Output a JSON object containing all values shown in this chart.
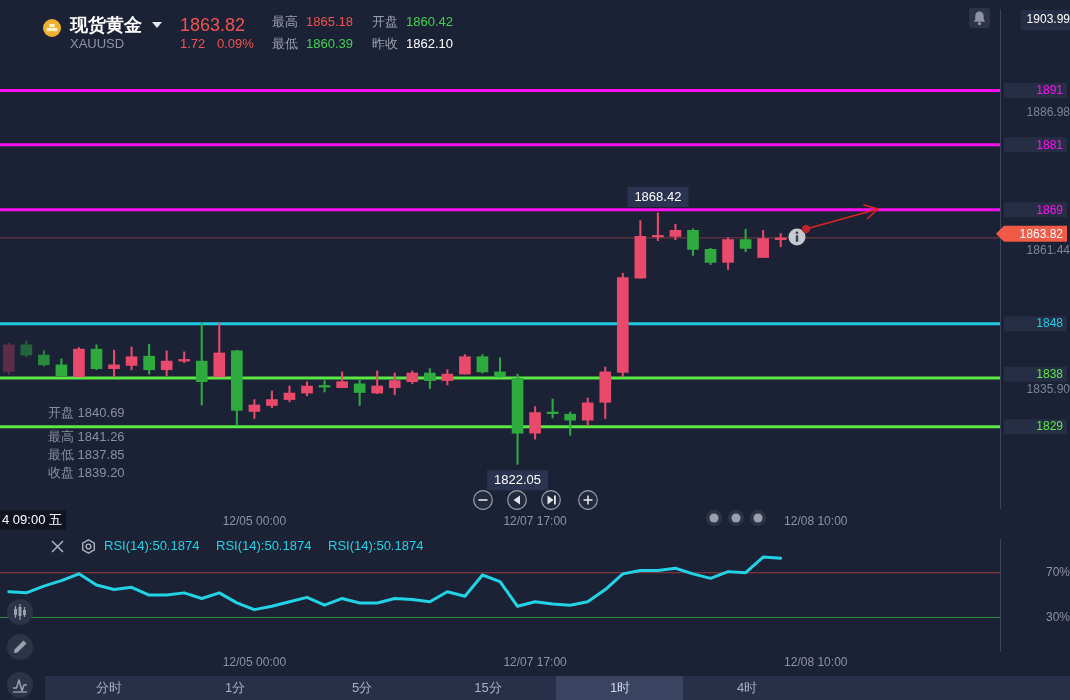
{
  "chart_data": [
    {
      "type": "candlestick",
      "title": "现货黄金",
      "subtitle": "XAUUSD",
      "categories": [
        null,
        null,
        null,
        null,
        null,
        null,
        null,
        null,
        null,
        null,
        null,
        null,
        null,
        null,
        "12/05 00:00",
        null,
        null,
        null,
        null,
        null,
        null,
        null,
        null,
        null,
        null,
        null,
        null,
        null,
        null,
        null,
        "12/07 17:00",
        null,
        null,
        null,
        null,
        null,
        null,
        null,
        null,
        null,
        null,
        null,
        null,
        null,
        null,
        null,
        "12/08 10:00",
        null,
        null,
        null,
        null,
        null,
        null,
        null,
        null,
        null,
        null
      ],
      "ohlc": [
        [
          1839.2,
          1844.4,
          1838.6,
          1844.1
        ],
        [
          1844.1,
          1844.8,
          1841.9,
          1842.2
        ],
        [
          1842.2,
          1843.0,
          1840.2,
          1840.4
        ],
        [
          1840.4,
          1841.5,
          1838.3,
          1838.4
        ],
        [
          1838.2,
          1843.6,
          1838.2,
          1843.3
        ],
        [
          1843.3,
          1844.1,
          1839.5,
          1839.7
        ],
        [
          1839.7,
          1843.1,
          1838.2,
          1840.4
        ],
        [
          1840.3,
          1843.7,
          1839.5,
          1841.9
        ],
        [
          1842.0,
          1844.2,
          1838.7,
          1839.5
        ],
        [
          1839.5,
          1843.0,
          1838.4,
          1841.1
        ],
        [
          1841.1,
          1842.8,
          1840.8,
          1841.4
        ],
        [
          1841.1,
          1848.1,
          1833.0,
          1837.3
        ],
        [
          1838.2,
          1848.1,
          1838.2,
          1842.6
        ],
        [
          1843.0,
          1843.1,
          1829.2,
          1832.0
        ],
        [
          1831.8,
          1834.0,
          1830.5,
          1833.0
        ],
        [
          1832.9,
          1835.6,
          1832.5,
          1834.0
        ],
        [
          1834.0,
          1836.5,
          1833.6,
          1835.2
        ],
        [
          1835.2,
          1837.3,
          1834.7,
          1836.5
        ],
        [
          1836.6,
          1837.5,
          1835.4,
          1836.3
        ],
        [
          1836.2,
          1839.1,
          1836.2,
          1837.3
        ],
        [
          1836.9,
          1837.6,
          1832.9,
          1835.3
        ],
        [
          1835.2,
          1839.3,
          1835.1,
          1836.5
        ],
        [
          1836.2,
          1838.9,
          1834.9,
          1837.5
        ],
        [
          1837.3,
          1839.3,
          1836.9,
          1838.9
        ],
        [
          1838.9,
          1839.7,
          1836.0,
          1837.5
        ],
        [
          1837.5,
          1839.5,
          1836.7,
          1838.7
        ],
        [
          1838.7,
          1842.3,
          1838.7,
          1841.9
        ],
        [
          1841.9,
          1842.3,
          1838.9,
          1839.1
        ],
        [
          1839.1,
          1841.7,
          1838.1,
          1838.2
        ],
        [
          1837.9,
          1838.7,
          1822.05,
          1827.8
        ],
        [
          1827.8,
          1832.7,
          1826.7,
          1831.6
        ],
        [
          1831.7,
          1834.1,
          1830.6,
          1831.4
        ],
        [
          1831.3,
          1831.7,
          1827.4,
          1830.2
        ],
        [
          1830.2,
          1834.3,
          1829.2,
          1833.4
        ],
        [
          1833.5,
          1840.0,
          1830.5,
          1839.1
        ],
        [
          1839.0,
          1857.3,
          1838.2,
          1856.5
        ],
        [
          1856.4,
          1867.0,
          1856.4,
          1864.1
        ],
        [
          1864.0,
          1868.42,
          1863.3,
          1864.3
        ],
        [
          1864.1,
          1866.3,
          1863.5,
          1865.2
        ],
        [
          1865.2,
          1865.5,
          1860.6,
          1861.7
        ],
        [
          1861.7,
          1861.9,
          1858.9,
          1859.3
        ],
        [
          1859.3,
          1863.9,
          1858.0,
          1863.5
        ],
        [
          1863.5,
          1865.4,
          1861.3,
          1861.9
        ],
        [
          1860.2,
          1865.2,
          1860.2,
          1863.7
        ],
        [
          1863.5,
          1864.6,
          1862.2,
          1863.82
        ],
        null,
        null,
        null,
        null,
        null,
        null,
        null,
        null,
        null,
        null,
        null,
        null
      ],
      "colors": [
        "#5b2d47",
        "#24643a",
        "#2a8a3c",
        "#2eaa3f",
        "#e9496b",
        "#2eaa3f",
        "#e9496b",
        "#e9496b",
        "#2eaa3f",
        "#e9496b",
        "#e9496b",
        "#2eaa3f",
        "#e9496b",
        "#2eaa3f",
        "#e9496b",
        "#e9496b",
        "#e9496b",
        "#e9496b",
        "#2eaa3f",
        "#e9496b",
        "#2eaa3f",
        "#e9496b",
        "#e9496b",
        "#e9496b",
        "#2eaa3f",
        "#e9496b",
        "#e9496b",
        "#2eaa3f",
        "#2eaa3f",
        "#2eaa3f",
        "#e9496b",
        "#2eaa3f",
        "#2eaa3f",
        "#e9496b",
        "#e9496b",
        "#e9496b",
        "#e9496b",
        "#e9496b",
        "#e9496b",
        "#2eaa3f",
        "#2eaa3f",
        "#e9496b",
        "#2eaa3f",
        "#e9496b",
        "#e9496b",
        null,
        null,
        null,
        null,
        null,
        null,
        null,
        null,
        null,
        null,
        null,
        null
      ],
      "ylim": [
        1814,
        1906
      ],
      "yticks": [
        {
          "value": 1835.9,
          "label": "1835.90"
        },
        {
          "value": 1861.44,
          "label": "1861.44"
        },
        {
          "value": 1886.98,
          "label": "1886.98"
        },
        {
          "value": 1903.99,
          "label": "1903.99"
        }
      ],
      "ref_lines": [
        {
          "axis": "y",
          "value": 1891,
          "label": "1891",
          "color": "#ff10f0"
        },
        {
          "axis": "y",
          "value": 1881,
          "label": "1881",
          "color": "#ff10f0"
        },
        {
          "axis": "y",
          "value": 1869,
          "label": "1869",
          "color": "#ff10f0"
        },
        {
          "axis": "y",
          "value": 1848,
          "label": "1848",
          "color": "#1fc9e3"
        },
        {
          "axis": "y",
          "value": 1838,
          "label": "1838",
          "color": "#5ae845"
        },
        {
          "axis": "y",
          "value": 1829,
          "label": "1829",
          "color": "#5ae845"
        },
        {
          "axis": "y",
          "value": 1863.82,
          "label": "1863.82",
          "color": "#f05a46"
        }
      ],
      "annotations": [
        {
          "text": "1868.42",
          "y": 1868.42
        },
        {
          "text": "1822.05",
          "y": 1822.05
        },
        "1863.82",
        "1.72",
        "0.09%",
        "最高",
        "1865.18",
        "开盘",
        "1860.42",
        "最低",
        "1860.39",
        "昨收",
        "1862.10",
        "开盘 1840.69",
        "最高 1841.26",
        "最低 1837.85",
        "收盘 1839.20",
        "4 09:00 五"
      ]
    },
    {
      "type": "line",
      "categories": [
        null,
        null,
        null,
        null,
        null,
        null,
        null,
        null,
        null,
        null,
        null,
        null,
        null,
        null,
        "12/05 00:00",
        null,
        null,
        null,
        null,
        null,
        null,
        null,
        null,
        null,
        null,
        null,
        null,
        null,
        null,
        null,
        "12/07 17:00",
        null,
        null,
        null,
        null,
        null,
        null,
        null,
        null,
        null,
        null,
        null,
        null,
        null,
        null,
        null,
        "12/08 10:00",
        null,
        null,
        null,
        null,
        null,
        null,
        null,
        null,
        null,
        null
      ],
      "series": [
        {
          "color": "#22d3e6",
          "values": [
            53,
            52,
            58,
            63,
            69,
            59,
            55,
            57,
            50,
            50,
            52,
            47,
            52,
            43,
            37,
            40,
            44,
            48,
            41,
            47,
            43,
            43,
            47,
            46,
            44,
            53,
            49,
            68,
            62,
            40,
            44,
            42,
            41,
            44,
            55,
            69,
            72,
            72,
            74,
            69,
            65,
            71,
            70,
            84,
            83,
            null,
            null,
            null,
            null,
            null,
            null,
            null,
            null,
            null,
            null,
            null,
            null
          ]
        }
      ],
      "ylim": [
        0,
        100
      ],
      "yticks": [
        {
          "value": 30,
          "label": "30%"
        },
        {
          "value": 70,
          "label": "70%"
        }
      ],
      "ref_lines": [
        {
          "axis": "y",
          "value": 70,
          "color": "#9a3a3c"
        },
        {
          "axis": "y",
          "value": 30,
          "color": "#2f8f3c"
        }
      ],
      "marker": "none",
      "annotations": [
        "RSI(14):50.1874",
        "RSI(14):50.1874",
        "RSI(14):50.1874",
        "分时",
        "1分",
        "5分",
        "15分",
        "1时",
        "4时"
      ]
    }
  ]
}
